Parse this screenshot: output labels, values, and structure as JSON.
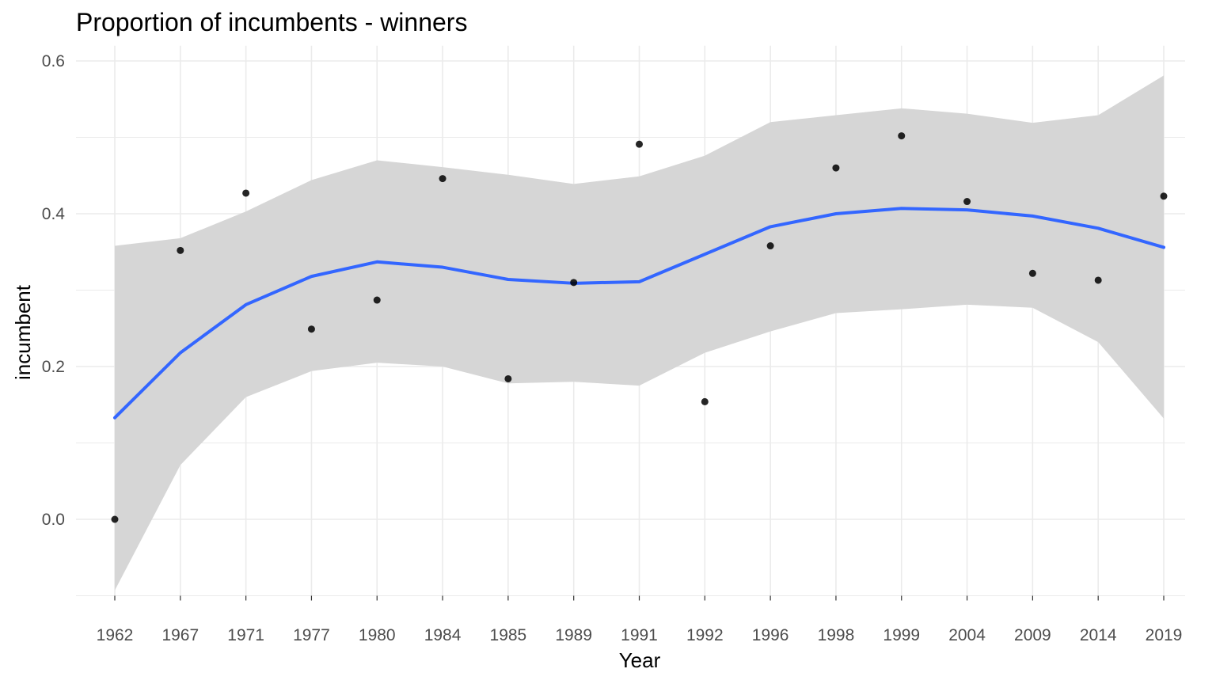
{
  "chart_data": {
    "type": "scatter",
    "title": "Proportion of incumbents - winners",
    "xlabel": "Year",
    "ylabel": "incumbent",
    "categories": [
      "1962",
      "1967",
      "1971",
      "1977",
      "1980",
      "1984",
      "1985",
      "1989",
      "1991",
      "1992",
      "1996",
      "1998",
      "1999",
      "2004",
      "2009",
      "2014",
      "2019"
    ],
    "points": [
      0.0,
      0.352,
      0.427,
      0.249,
      0.287,
      0.446,
      0.184,
      0.31,
      0.491,
      0.154,
      0.358,
      0.46,
      0.502,
      0.416,
      0.322,
      0.313,
      0.423
    ],
    "smooth_line": [
      0.133,
      0.218,
      0.281,
      0.318,
      0.337,
      0.33,
      0.314,
      0.309,
      0.311,
      0.347,
      0.383,
      0.4,
      0.407,
      0.405,
      0.397,
      0.381,
      0.356
    ],
    "confidence_upper": [
      0.358,
      0.368,
      0.403,
      0.444,
      0.47,
      0.461,
      0.451,
      0.439,
      0.449,
      0.476,
      0.52,
      0.529,
      0.538,
      0.531,
      0.519,
      0.529,
      0.581
    ],
    "confidence_lower": [
      -0.093,
      0.071,
      0.16,
      0.194,
      0.205,
      0.2,
      0.178,
      0.18,
      0.175,
      0.218,
      0.246,
      0.27,
      0.275,
      0.281,
      0.277,
      0.232,
      0.132
    ],
    "y_ticks": [
      "0.0",
      "0.2",
      "0.4",
      "0.6"
    ],
    "y_tick_values": [
      0.0,
      0.2,
      0.4,
      0.6
    ],
    "ylim": [
      -0.1,
      0.62
    ],
    "grid": true,
    "colors": {
      "smooth_line": "#3366ff",
      "confidence_band": "#d6d6d6",
      "points": "#000000",
      "grid": "#ebebeb",
      "tick_labels": "#4d4d4d"
    }
  }
}
